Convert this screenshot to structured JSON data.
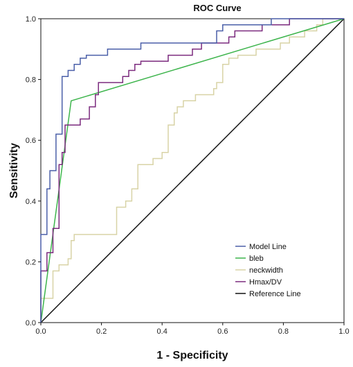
{
  "chart_data": {
    "type": "line",
    "title": "ROC Curve",
    "xlabel": "1 - Specificity",
    "ylabel": "Sensitivity",
    "xlim": [
      0,
      1
    ],
    "ylim": [
      0,
      1
    ],
    "x_ticks": [
      "0.0",
      "0.2",
      "0.4",
      "0.6",
      "0.8",
      "1.0"
    ],
    "y_ticks": [
      "0.0",
      "0.2",
      "0.4",
      "0.6",
      "0.8",
      "1.0"
    ],
    "grid": false,
    "legend_position": "bottom-right",
    "series": [
      {
        "name": "Model Line",
        "color": "#4a5fa8",
        "step": true,
        "points": [
          [
            0,
            0
          ],
          [
            0,
            0.29
          ],
          [
            0.02,
            0.29
          ],
          [
            0.02,
            0.44
          ],
          [
            0.03,
            0.44
          ],
          [
            0.03,
            0.5
          ],
          [
            0.05,
            0.5
          ],
          [
            0.05,
            0.62
          ],
          [
            0.07,
            0.62
          ],
          [
            0.07,
            0.81
          ],
          [
            0.09,
            0.81
          ],
          [
            0.09,
            0.83
          ],
          [
            0.11,
            0.83
          ],
          [
            0.11,
            0.85
          ],
          [
            0.13,
            0.85
          ],
          [
            0.13,
            0.87
          ],
          [
            0.15,
            0.87
          ],
          [
            0.15,
            0.88
          ],
          [
            0.22,
            0.88
          ],
          [
            0.22,
            0.9
          ],
          [
            0.33,
            0.9
          ],
          [
            0.33,
            0.92
          ],
          [
            0.58,
            0.92
          ],
          [
            0.58,
            0.96
          ],
          [
            0.6,
            0.96
          ],
          [
            0.6,
            0.98
          ],
          [
            0.71,
            0.98
          ],
          [
            0.71,
            0.98
          ],
          [
            0.76,
            0.98
          ],
          [
            0.76,
            1.0
          ],
          [
            1.0,
            1.0
          ]
        ]
      },
      {
        "name": "bleb",
        "color": "#3cb44b",
        "step": false,
        "points": [
          [
            0,
            0
          ],
          [
            0.1,
            0.73
          ],
          [
            1.0,
            1.0
          ]
        ]
      },
      {
        "name": "neckwidth",
        "color": "#d8d3a6",
        "step": true,
        "points": [
          [
            0,
            0
          ],
          [
            0,
            0.08
          ],
          [
            0.04,
            0.08
          ],
          [
            0.04,
            0.17
          ],
          [
            0.06,
            0.17
          ],
          [
            0.06,
            0.19
          ],
          [
            0.09,
            0.19
          ],
          [
            0.09,
            0.21
          ],
          [
            0.1,
            0.21
          ],
          [
            0.1,
            0.27
          ],
          [
            0.11,
            0.27
          ],
          [
            0.11,
            0.29
          ],
          [
            0.25,
            0.29
          ],
          [
            0.25,
            0.38
          ],
          [
            0.28,
            0.38
          ],
          [
            0.28,
            0.4
          ],
          [
            0.3,
            0.4
          ],
          [
            0.3,
            0.44
          ],
          [
            0.32,
            0.44
          ],
          [
            0.32,
            0.52
          ],
          [
            0.37,
            0.52
          ],
          [
            0.37,
            0.54
          ],
          [
            0.4,
            0.54
          ],
          [
            0.4,
            0.56
          ],
          [
            0.42,
            0.56
          ],
          [
            0.42,
            0.65
          ],
          [
            0.44,
            0.65
          ],
          [
            0.44,
            0.69
          ],
          [
            0.45,
            0.69
          ],
          [
            0.45,
            0.71
          ],
          [
            0.47,
            0.71
          ],
          [
            0.47,
            0.73
          ],
          [
            0.51,
            0.73
          ],
          [
            0.51,
            0.75
          ],
          [
            0.57,
            0.75
          ],
          [
            0.57,
            0.77
          ],
          [
            0.58,
            0.77
          ],
          [
            0.58,
            0.79
          ],
          [
            0.6,
            0.79
          ],
          [
            0.6,
            0.85
          ],
          [
            0.62,
            0.85
          ],
          [
            0.62,
            0.87
          ],
          [
            0.65,
            0.87
          ],
          [
            0.65,
            0.88
          ],
          [
            0.71,
            0.88
          ],
          [
            0.71,
            0.9
          ],
          [
            0.79,
            0.9
          ],
          [
            0.79,
            0.92
          ],
          [
            0.82,
            0.92
          ],
          [
            0.82,
            0.94
          ],
          [
            0.87,
            0.94
          ],
          [
            0.87,
            0.96
          ],
          [
            0.91,
            0.96
          ],
          [
            0.91,
            0.98
          ],
          [
            0.93,
            0.98
          ],
          [
            0.93,
            1.0
          ],
          [
            1.0,
            1.0
          ]
        ]
      },
      {
        "name": "Hmax/DV",
        "color": "#7b2a7e",
        "step": true,
        "points": [
          [
            0,
            0
          ],
          [
            0,
            0.17
          ],
          [
            0.02,
            0.17
          ],
          [
            0.02,
            0.23
          ],
          [
            0.04,
            0.23
          ],
          [
            0.04,
            0.31
          ],
          [
            0.06,
            0.31
          ],
          [
            0.06,
            0.52
          ],
          [
            0.07,
            0.52
          ],
          [
            0.07,
            0.56
          ],
          [
            0.08,
            0.56
          ],
          [
            0.08,
            0.65
          ],
          [
            0.13,
            0.65
          ],
          [
            0.13,
            0.67
          ],
          [
            0.16,
            0.67
          ],
          [
            0.16,
            0.71
          ],
          [
            0.18,
            0.71
          ],
          [
            0.18,
            0.75
          ],
          [
            0.19,
            0.75
          ],
          [
            0.19,
            0.79
          ],
          [
            0.27,
            0.79
          ],
          [
            0.27,
            0.81
          ],
          [
            0.29,
            0.81
          ],
          [
            0.29,
            0.83
          ],
          [
            0.31,
            0.83
          ],
          [
            0.31,
            0.85
          ],
          [
            0.33,
            0.85
          ],
          [
            0.33,
            0.86
          ],
          [
            0.42,
            0.86
          ],
          [
            0.42,
            0.88
          ],
          [
            0.5,
            0.88
          ],
          [
            0.5,
            0.9
          ],
          [
            0.53,
            0.9
          ],
          [
            0.53,
            0.92
          ],
          [
            0.62,
            0.92
          ],
          [
            0.62,
            0.94
          ],
          [
            0.64,
            0.94
          ],
          [
            0.64,
            0.96
          ],
          [
            0.73,
            0.96
          ],
          [
            0.73,
            0.98
          ],
          [
            0.82,
            0.98
          ],
          [
            0.82,
            1.0
          ],
          [
            1.0,
            1.0
          ]
        ]
      },
      {
        "name": "Reference Line",
        "color": "#111111",
        "step": false,
        "points": [
          [
            0,
            0
          ],
          [
            1,
            1
          ]
        ]
      }
    ]
  }
}
